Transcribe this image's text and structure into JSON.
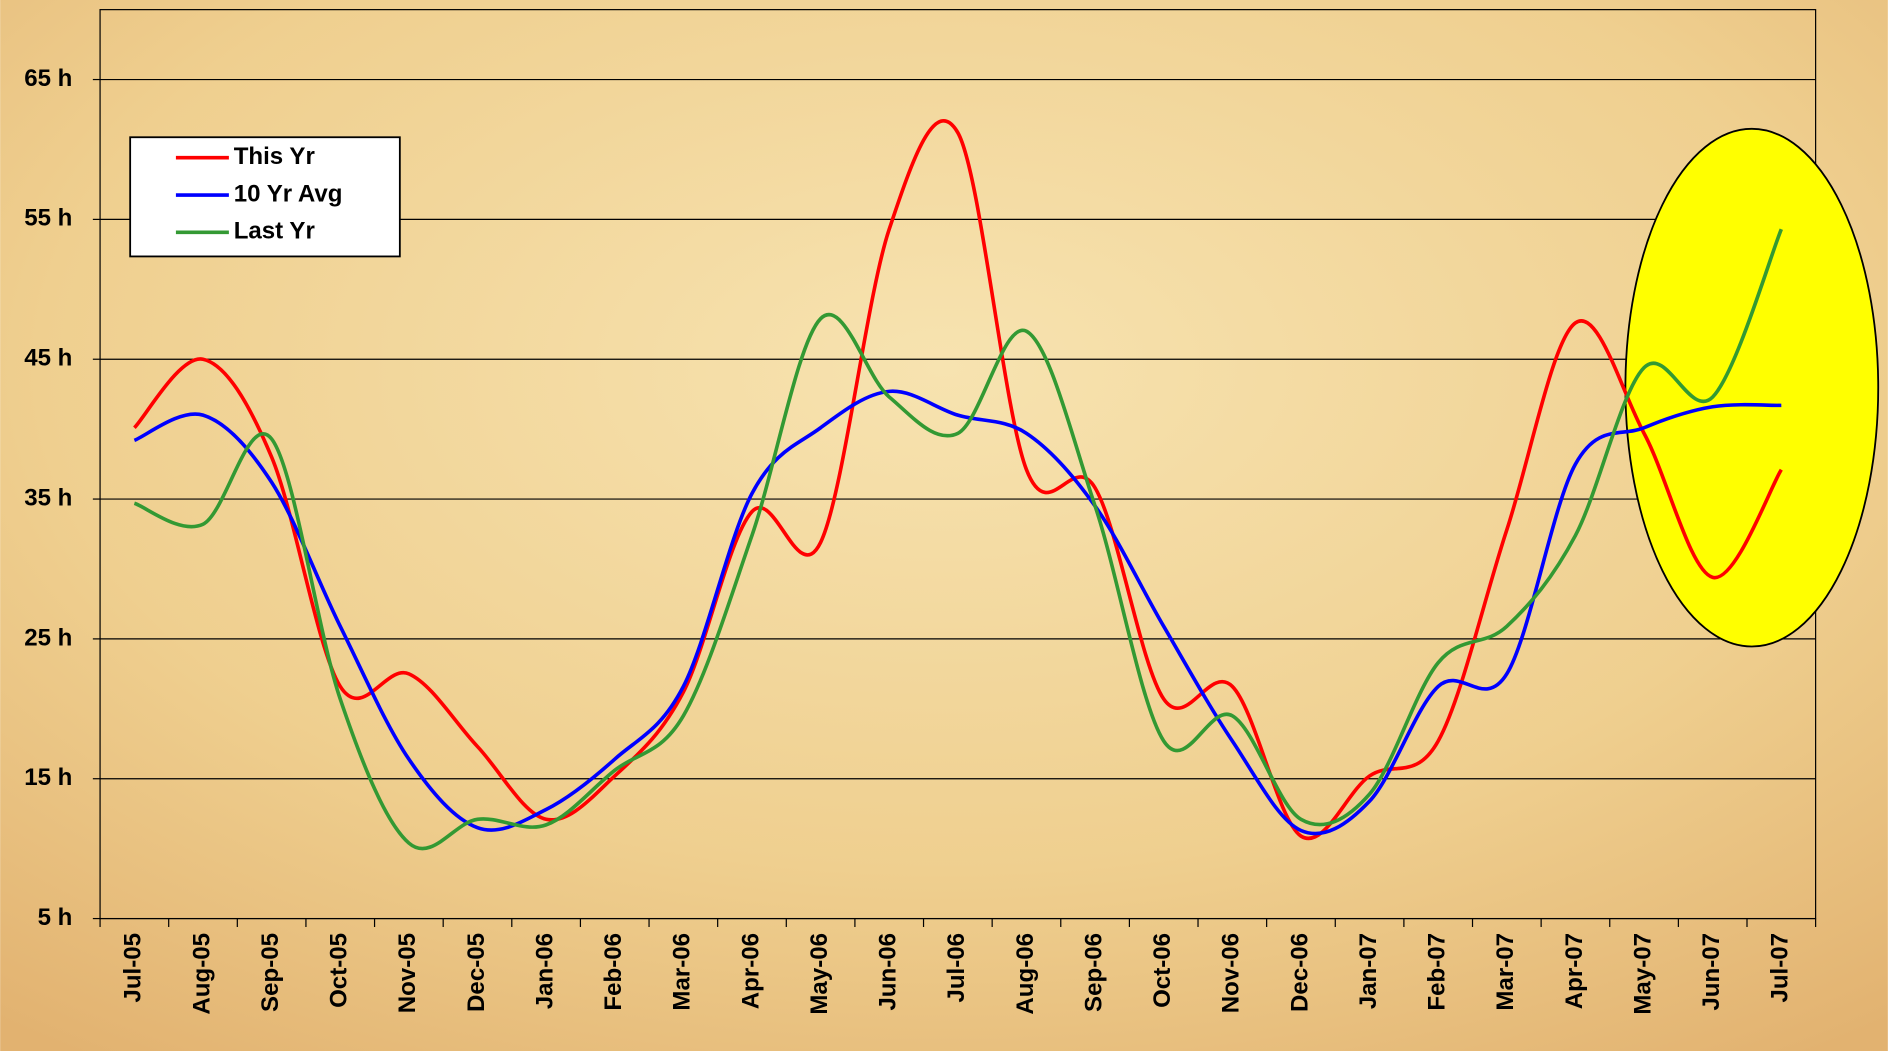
{
  "chart_data": {
    "type": "line",
    "categories": [
      "Jul-05",
      "Aug-05",
      "Sep-05",
      "Oct-05",
      "Nov-05",
      "Dec-05",
      "Jan-06",
      "Feb-06",
      "Mar-06",
      "Apr-06",
      "May-06",
      "Jun-06",
      "Jul-06",
      "Aug-06",
      "Sep-06",
      "Oct-06",
      "Nov-06",
      "Dec-06",
      "Jan-07",
      "Feb-07",
      "Mar-07",
      "Apr-07",
      "May-07",
      "Jun-07",
      "Jul-07"
    ],
    "series": [
      {
        "name": "This Yr",
        "color": "#ff0000",
        "values": [
          40.1,
          45.0,
          38,
          21.6,
          22.5,
          17.3,
          12.1,
          15.2,
          21.2,
          34.1,
          31.9,
          54.3,
          61.2,
          37.1,
          35.8,
          20.7,
          21.6,
          10.9,
          15.2,
          17.7,
          32.8,
          47.6,
          39.7,
          29.4,
          37.1
        ]
      },
      {
        "name": "10 Yr Avg",
        "color": "#0000ff",
        "values": [
          39.2,
          41,
          36.2,
          25.9,
          16.4,
          11.5,
          12.8,
          16.4,
          21.6,
          35.4,
          40.1,
          42.7,
          41,
          39.7,
          34.5,
          25.9,
          17.7,
          11.3,
          13.4,
          21.6,
          22.5,
          37.5,
          40.1,
          41.6,
          41.7
        ]
      },
      {
        "name": "Last Yr",
        "color": "#339933",
        "values": [
          34.7,
          33.2,
          39.3,
          20.7,
          10.4,
          12.1,
          11.7,
          15.6,
          19.5,
          32.4,
          47.9,
          42.3,
          39.7,
          47,
          34.5,
          17.7,
          19.5,
          12.1,
          13.9,
          23.3,
          25.9,
          32.4,
          44.4,
          42.3,
          54.3
        ]
      }
    ],
    "ylim": [
      5,
      70
    ],
    "yticks": [
      {
        "value": 5,
        "label": "5 h"
      },
      {
        "value": 15,
        "label": "15 h"
      },
      {
        "value": 25,
        "label": "25 h"
      },
      {
        "value": 35,
        "label": "35 h"
      },
      {
        "value": 45,
        "label": "45 h"
      },
      {
        "value": 55,
        "label": "55 h"
      },
      {
        "value": 65,
        "label": "65 h"
      }
    ],
    "grid": true,
    "legend": "upper left"
  }
}
